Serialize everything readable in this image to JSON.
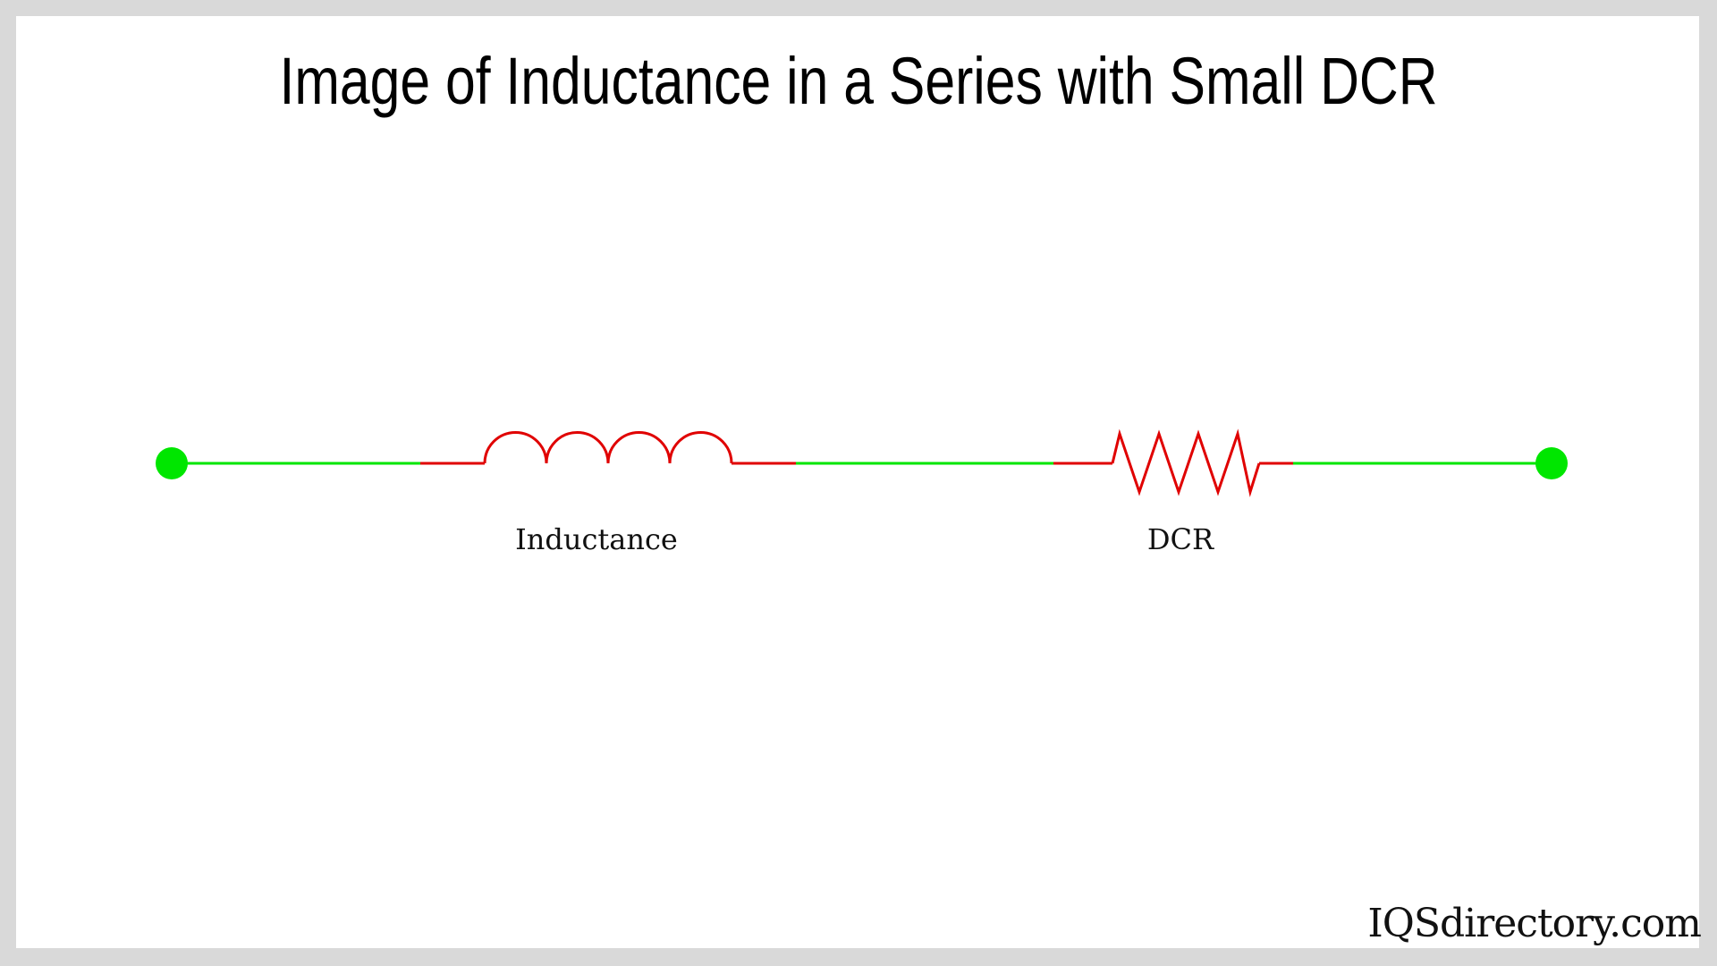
{
  "title": "Image of Inductance in a Series with Small DCR",
  "components": {
    "inductor_label": "Inductance",
    "resistor_label": "DCR"
  },
  "watermark": "IQSdirectory.com",
  "colors": {
    "wire": "#00e600",
    "component": "#e00000",
    "terminal": "#00e600",
    "background": "#ffffff",
    "frame": "#d9d9d9"
  }
}
